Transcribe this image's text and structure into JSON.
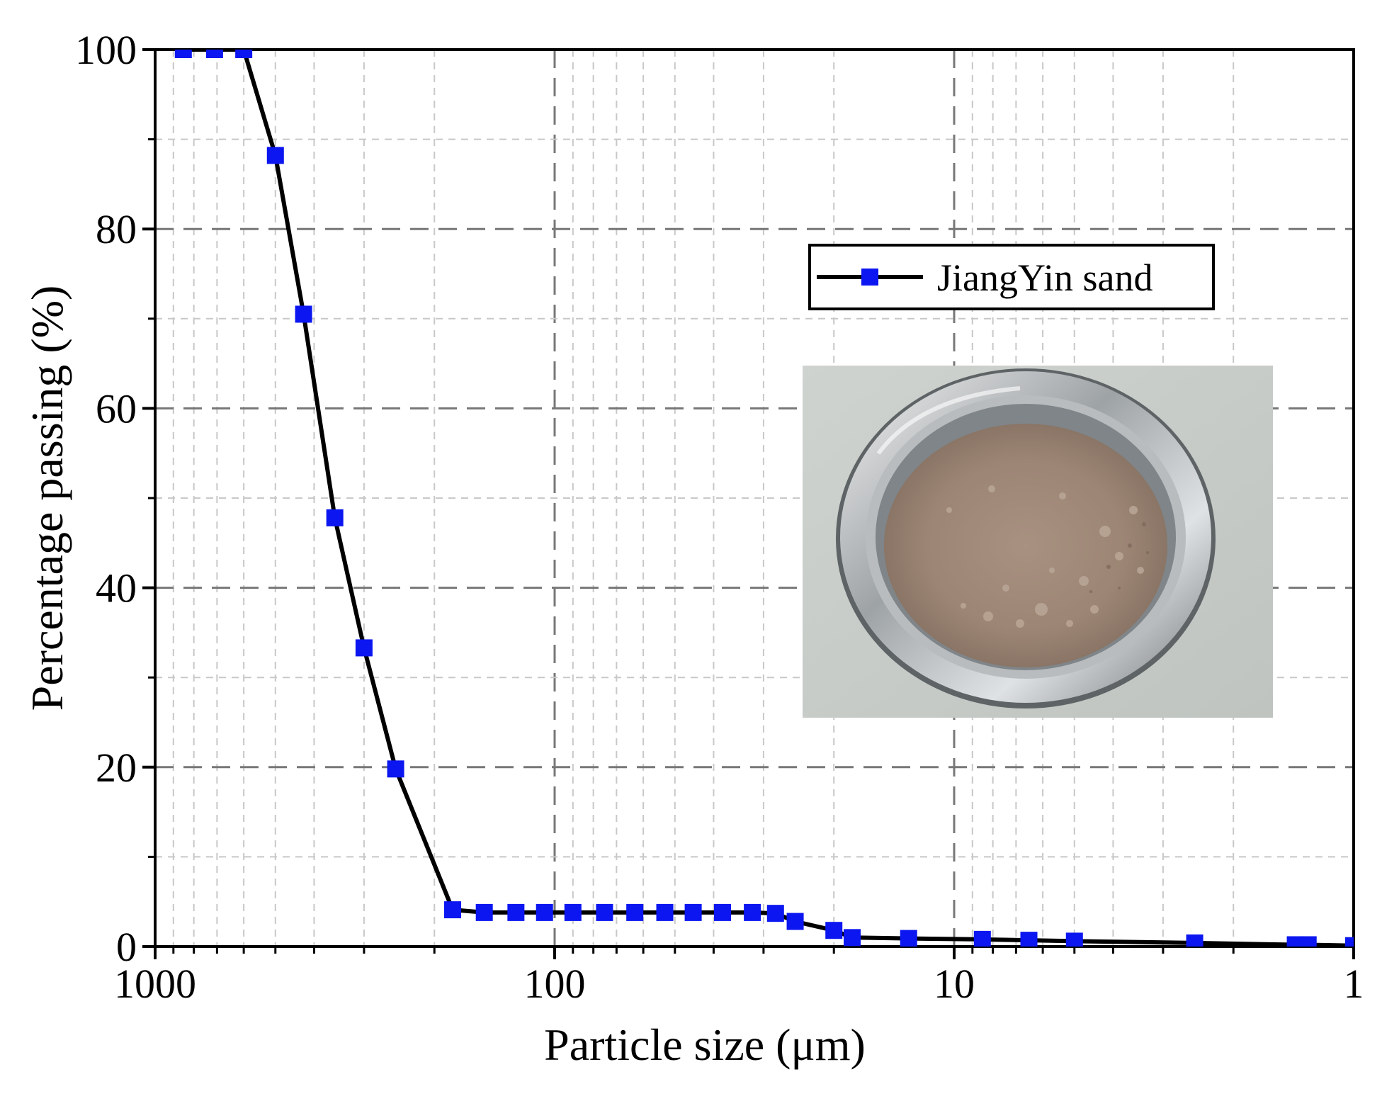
{
  "chart_data": {
    "type": "line",
    "xlabel": "Particle size (μm)",
    "ylabel": "Percentage passing (%)",
    "xscale": "log",
    "x_reversed": true,
    "xlim": [
      1000,
      1
    ],
    "ylim": [
      0,
      100
    ],
    "x_ticks": [
      1000,
      100,
      10,
      1
    ],
    "x_tick_labels": [
      "1000",
      "100",
      "10",
      "1"
    ],
    "y_ticks": [
      0,
      20,
      40,
      60,
      80,
      100
    ],
    "y_tick_labels": [
      "0",
      "20",
      "40",
      "60",
      "80",
      "100"
    ],
    "grid": true,
    "legend_position": "upper-right",
    "series": [
      {
        "name": "JiangYin sand",
        "color": "#000000",
        "marker": "square",
        "marker_color": "#0b16f0",
        "x": [
          850,
          710,
          600,
          500,
          425,
          355,
          300,
          250,
          180,
          150,
          125,
          106,
          90,
          75,
          63,
          53,
          45,
          38,
          32,
          28,
          25,
          20,
          18,
          13,
          8.5,
          6.5,
          5,
          2.5,
          1.4,
          1.3,
          1
        ],
        "y": [
          100,
          100,
          100,
          88.2,
          70.5,
          47.8,
          33.3,
          19.8,
          4.1,
          3.8,
          3.8,
          3.8,
          3.8,
          3.8,
          3.8,
          3.8,
          3.8,
          3.8,
          3.8,
          3.7,
          2.8,
          1.8,
          1.0,
          0.9,
          0.8,
          0.7,
          0.6,
          0.4,
          0.2,
          0.2,
          0.1
        ]
      }
    ]
  },
  "inset_photo": {
    "icon": "sand-sample-photo-icon"
  }
}
